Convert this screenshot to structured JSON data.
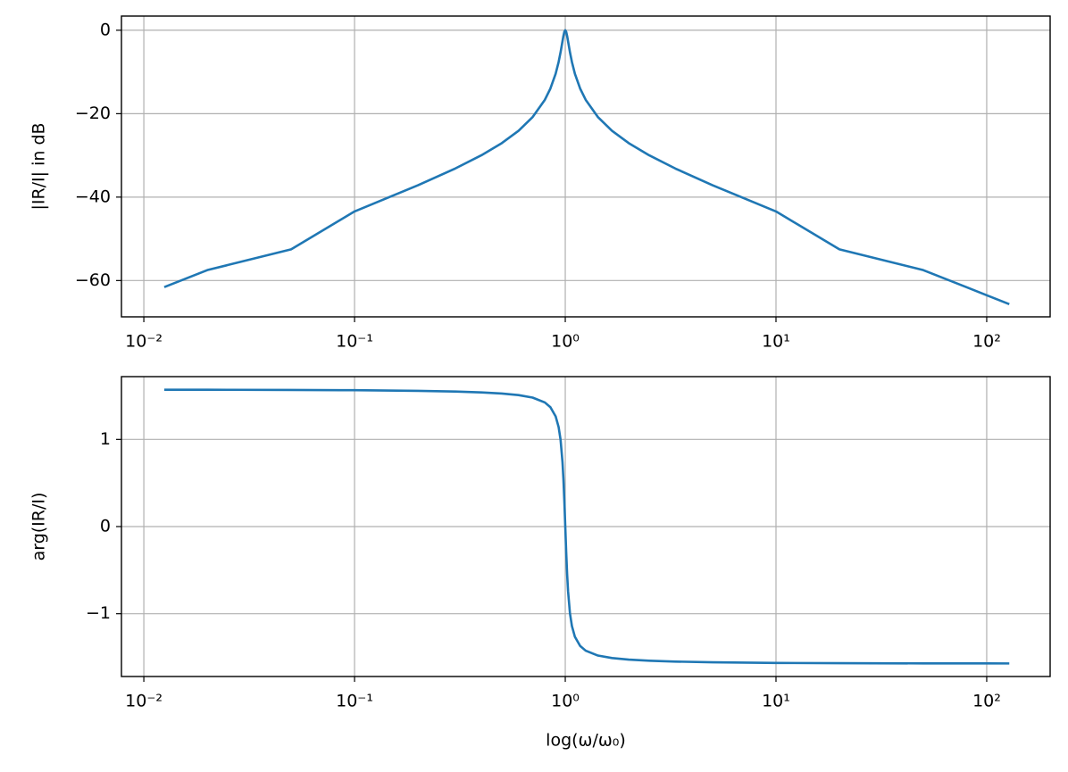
{
  "chart_data": [
    {
      "type": "line",
      "ylabel": "|IR/I| in dB",
      "color": "#1f77b4",
      "log_x": true,
      "grid": true,
      "x": [
        0.0125,
        0.02,
        0.05,
        0.1,
        0.2,
        0.3,
        0.4,
        0.5,
        0.6,
        0.7,
        0.8,
        0.85,
        0.9,
        0.93,
        0.95,
        0.97,
        0.98,
        0.99,
        1,
        1.0101,
        1.0204,
        1.0309,
        1.0526,
        1.0753,
        1.1111,
        1.1765,
        1.25,
        1.4286,
        1.6667,
        2,
        2.5,
        3.3333,
        5,
        10,
        20,
        50,
        80,
        100,
        128
      ],
      "values": [
        -61.58,
        -57.5,
        -52.52,
        -43.43,
        -37.15,
        -33.16,
        -29.97,
        -27.05,
        -24.1,
        -20.81,
        -16.68,
        -13.98,
        -10.43,
        -7.595,
        -5.276,
        -2.637,
        -1.359,
        -0.378,
        0,
        -0.378,
        -1.359,
        -2.637,
        -5.276,
        -7.595,
        -10.43,
        -13.98,
        -16.68,
        -20.81,
        -24.1,
        -27.05,
        -29.97,
        -33.16,
        -37.15,
        -43.43,
        -52.52,
        -57.5,
        -61.58,
        -63.52,
        -65.67
      ],
      "xlim": [
        0.00783,
        200
      ],
      "xticks": [
        {
          "value": 0.01,
          "label": "10⁻²"
        },
        {
          "value": 0.1,
          "label": "10⁻¹"
        },
        {
          "value": 1,
          "label": "10⁰"
        },
        {
          "value": 10,
          "label": "10¹"
        },
        {
          "value": 100,
          "label": "10²"
        }
      ],
      "ylim": [
        -68.7,
        3.4
      ],
      "yticks": [
        0,
        {
          "value": -20,
          "label": "−20"
        },
        {
          "value": -40,
          "label": "−40"
        },
        {
          "value": -60,
          "label": "−60"
        }
      ]
    },
    {
      "type": "line",
      "ylabel": "arg(IR/I)",
      "xlabel": "log(ω/ω₀)",
      "color": "#1f77b4",
      "log_x": true,
      "grid": true,
      "x": [
        0.0125,
        0.02,
        0.05,
        0.1,
        0.2,
        0.3,
        0.4,
        0.5,
        0.6,
        0.7,
        0.8,
        0.85,
        0.9,
        0.93,
        0.95,
        0.97,
        0.98,
        0.99,
        1,
        1.0101,
        1.0204,
        1.0309,
        1.0526,
        1.0753,
        1.1111,
        1.1765,
        1.25,
        1.4286,
        1.6667,
        2,
        2.5,
        3.3333,
        5,
        10,
        20,
        50,
        80,
        100,
        128
      ],
      "values": [
        1.57,
        1.5695,
        1.5675,
        1.5641,
        1.5569,
        1.5488,
        1.5391,
        1.5264,
        1.5084,
        1.4796,
        1.4237,
        1.3694,
        1.2648,
        1.1406,
        0.995,
        0.7404,
        0.5452,
        0.2929,
        0,
        -0.2929,
        -0.5452,
        -0.7404,
        -0.995,
        -1.1406,
        -1.2648,
        -1.3694,
        -1.4237,
        -1.4796,
        -1.5084,
        -1.5264,
        -1.5391,
        -1.5488,
        -1.5569,
        -1.5641,
        -1.5675,
        -1.5695,
        -1.57,
        -1.5701,
        -1.5703
      ],
      "xlim": [
        0.00783,
        200
      ],
      "xticks": [
        {
          "value": 0.01,
          "label": "10⁻²"
        },
        {
          "value": 0.1,
          "label": "10⁻¹"
        },
        {
          "value": 1,
          "label": "10⁰"
        },
        {
          "value": 10,
          "label": "10¹"
        },
        {
          "value": 100,
          "label": "10²"
        }
      ],
      "ylim": [
        -1.72,
        1.72
      ],
      "yticks": [
        1,
        0,
        {
          "value": -1,
          "label": "−1"
        }
      ]
    }
  ]
}
